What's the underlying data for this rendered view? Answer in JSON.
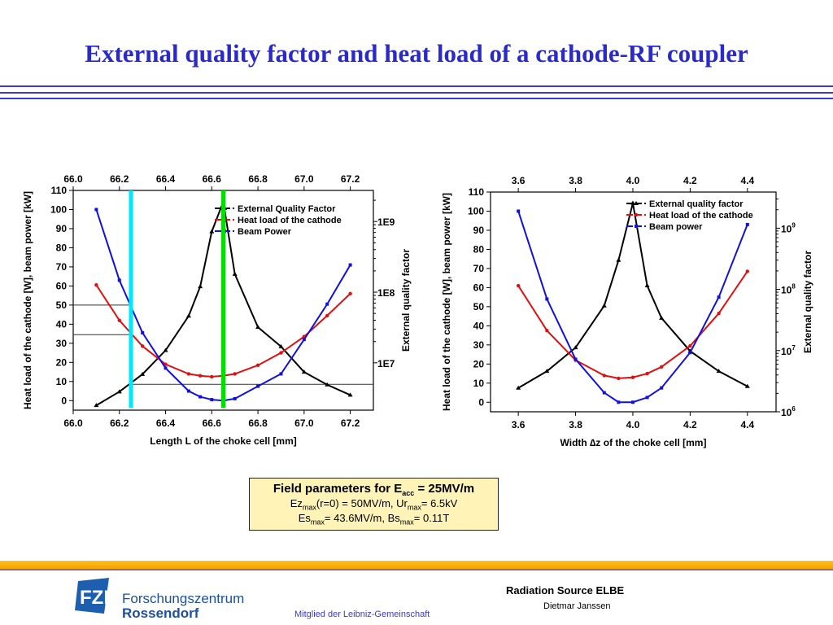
{
  "title": "External quality factor and heat load of a cathode-RF coupler",
  "field_box": {
    "heading": "Field parameters for E",
    "heading_sub": "acc",
    "heading_value": " = 25MV/m",
    "line1": [
      {
        "t": "Ez"
      },
      {
        "s": "max"
      },
      {
        "t": "(r=0) = 50MV/m, Ur"
      },
      {
        "s": "max"
      },
      {
        "t": "= 6.5kV"
      }
    ],
    "line2": [
      {
        "t": "Es"
      },
      {
        "s": "max"
      },
      {
        "t": "= 43.6MV/m, Bs"
      },
      {
        "s": "max"
      },
      {
        "t": "= 0.11T"
      }
    ]
  },
  "footer": {
    "org_line1": "Forschungszentrum",
    "org_line2": "Rossendorf",
    "logo_text": "FZR",
    "member": "Mitglied der Leibniz-Gemeinschaft",
    "project": "Radiation Source ELBE",
    "author": "Dietmar Janssen"
  },
  "colors": {
    "title": "#2a2ac8",
    "qext": "#000000",
    "heat": "#e01010",
    "beam": "#1010e0",
    "cyan_marker": "#00e8ff",
    "green_marker": "#00e000"
  },
  "chart_data": [
    {
      "type": "line",
      "xlabel": "Length L of the choke cell [mm]",
      "ylabel": "Heat load of the cathode [W], beam power [kW]",
      "y2label": "External quality factor",
      "xlim": [
        66.0,
        67.3
      ],
      "ylim": [
        -5,
        110
      ],
      "y2lim_log10": [
        6.33,
        9.44
      ],
      "xticks": [
        "66.0",
        "66.2",
        "66.4",
        "66.6",
        "66.8",
        "67.0",
        "67.2"
      ],
      "yticks": [
        "0",
        "10",
        "20",
        "30",
        "40",
        "50",
        "60",
        "70",
        "80",
        "90",
        "100",
        "110"
      ],
      "y2ticks": [
        {
          "v": 10000000.0,
          "label": "1E7"
        },
        {
          "v": 100000000.0,
          "label": "1E8"
        },
        {
          "v": 1000000000.0,
          "label": "1E9"
        }
      ],
      "legend_position": "top-right",
      "x": [
        66.1,
        66.2,
        66.3,
        66.4,
        66.5,
        66.55,
        66.6,
        66.65,
        66.7,
        66.8,
        66.9,
        67.0,
        67.1,
        67.2
      ],
      "series": [
        {
          "name": "External Quality Factor",
          "axis": "y2",
          "marker": "triangle",
          "color": "#000000",
          "values": [
            2500000.0,
            3900000.0,
            6900000.0,
            15000000.0,
            46000000.0,
            120000000.0,
            720000000.0,
            1900000000.0,
            180000000.0,
            32000000.0,
            17000000.0,
            7400000.0,
            4900000.0,
            3500000.0
          ]
        },
        {
          "name": "Heat load of the cathode",
          "axis": "y",
          "marker": "circle",
          "color": "#e01010",
          "values": [
            60.5,
            42,
            28.5,
            19,
            14,
            13,
            12.5,
            13,
            14,
            18.5,
            25,
            33.5,
            44.5,
            56
          ]
        },
        {
          "name": "Beam Power",
          "axis": "y",
          "marker": "square",
          "color": "#1010e0",
          "values": [
            100,
            63,
            35.5,
            17,
            5,
            2,
            0.5,
            0,
            1,
            7.5,
            14,
            32,
            50.5,
            71
          ]
        }
      ],
      "annotations": {
        "vlines": [
          {
            "x": 66.25,
            "color": "#00e8ff"
          },
          {
            "x": 66.65,
            "color": "#00e000"
          }
        ],
        "hlines": [
          {
            "y": 50,
            "x_from": 66.0,
            "x_to": 66.25
          },
          {
            "y": 34.5,
            "x_from": 66.0,
            "x_to": 66.25
          },
          {
            "y": 8.5,
            "x_from": 66.25,
            "x_to": 67.3
          }
        ]
      }
    },
    {
      "type": "line",
      "xlabel": "Width ∆z of the choke cell [mm]",
      "ylabel": "Heat load of the cathode [W], beam power [kW]",
      "y2label": "External quality factor",
      "xlim": [
        3.503,
        4.5
      ],
      "ylim": [
        -5,
        110
      ],
      "y2lim_log10": [
        6.0,
        9.59
      ],
      "xticks": [
        "3.6",
        "3.8",
        "4.0",
        "4.2",
        "4.4"
      ],
      "yticks": [
        "0",
        "10",
        "20",
        "30",
        "40",
        "50",
        "60",
        "70",
        "80",
        "90",
        "100",
        "110"
      ],
      "y2ticks": [
        {
          "v": 1000000.0,
          "label": "10",
          "exp": "6"
        },
        {
          "v": 10000000.0,
          "label": "10",
          "exp": "7"
        },
        {
          "v": 100000000.0,
          "label": "10",
          "exp": "8"
        },
        {
          "v": 1000000000.0,
          "label": "10",
          "exp": "9"
        }
      ],
      "legend_position": "top-right",
      "x": [
        3.6,
        3.7,
        3.8,
        3.9,
        3.95,
        4.0,
        4.05,
        4.1,
        4.2,
        4.3,
        4.4
      ],
      "series": [
        {
          "name": "External quality factor",
          "axis": "y2",
          "marker": "triangle",
          "color": "#000000",
          "values": [
            2450000.0,
            4600000.0,
            11200000.0,
            54000000.0,
            300000000.0,
            2570000000.0,
            115000000.0,
            34000000.0,
            9800000.0,
            4600000.0,
            2600000.0
          ]
        },
        {
          "name": "Heat load of the cathode",
          "axis": "y",
          "marker": "circle",
          "color": "#e01010",
          "values": [
            61,
            37.5,
            22,
            14,
            12.5,
            13,
            15,
            18.5,
            29.5,
            46.5,
            68.5
          ]
        },
        {
          "name": "Beam power",
          "axis": "y",
          "marker": "square",
          "color": "#1010e0",
          "values": [
            100,
            54,
            22.5,
            5,
            0,
            0,
            2.5,
            7.5,
            26,
            55,
            93
          ]
        }
      ]
    }
  ]
}
